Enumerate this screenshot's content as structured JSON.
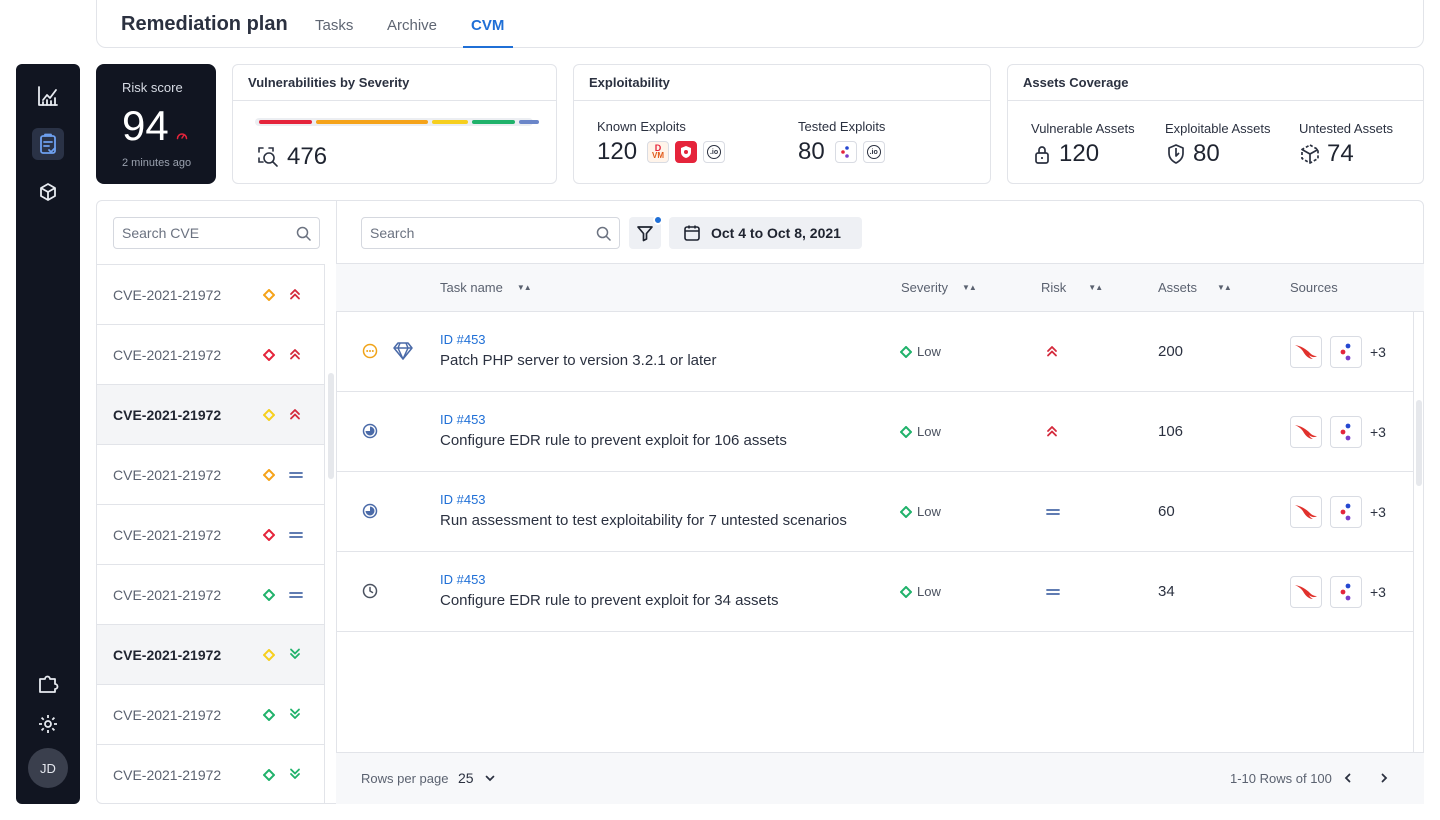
{
  "header": {
    "title": "Remediation plan",
    "tabs": [
      {
        "label": "Tasks",
        "active": false
      },
      {
        "label": "Archive",
        "active": false
      },
      {
        "label": "CVM",
        "active": true
      }
    ]
  },
  "sidebar": {
    "items": [
      {
        "icon": "chart-line-icon",
        "active": false
      },
      {
        "icon": "clipboard-check-icon",
        "active": true
      },
      {
        "icon": "cube-icon",
        "active": false
      },
      {
        "icon": "plugin-icon",
        "active": false
      },
      {
        "icon": "gear-icon",
        "active": false
      }
    ],
    "avatar_initials": "JD"
  },
  "risk_score": {
    "label": "Risk score",
    "value": "94",
    "updated": "2 minutes ago"
  },
  "severity_card": {
    "title": "Vulnerabilities by Severity",
    "count": "476",
    "segments": [
      {
        "color": "#e5243b",
        "fraction": 0.21
      },
      {
        "color": "#f5a31a",
        "fraction": 0.44
      },
      {
        "color": "#f6cf1e",
        "fraction": 0.14
      },
      {
        "color": "#20b26b",
        "fraction": 0.17
      },
      {
        "color": "#6b86c9",
        "fraction": 0.08
      }
    ]
  },
  "exploitability_card": {
    "title": "Exploitability",
    "known": {
      "label": "Known Exploits",
      "value": "120",
      "sources": [
        "VM",
        "shield",
        "io"
      ]
    },
    "tested": {
      "label": "Tested Exploits",
      "value": "80",
      "sources": [
        "dots",
        "io"
      ]
    }
  },
  "assets_card": {
    "title": "Assets Coverage",
    "vulnerable": {
      "label": "Vulnerable Assets",
      "value": "120"
    },
    "exploitable": {
      "label": "Exploitable Assets",
      "value": "80"
    },
    "untested": {
      "label": "Untested Assets",
      "value": "74"
    }
  },
  "cve_panel": {
    "search_placeholder": "Search CVE",
    "items": [
      {
        "id": "CVE-2021-21972",
        "severity": "orange",
        "risk": "high",
        "selected": false
      },
      {
        "id": "CVE-2021-21972",
        "severity": "red",
        "risk": "high",
        "selected": false
      },
      {
        "id": "CVE-2021-21972",
        "severity": "yellow",
        "risk": "high",
        "selected": true
      },
      {
        "id": "CVE-2021-21972",
        "severity": "orange",
        "risk": "medium",
        "selected": false
      },
      {
        "id": "CVE-2021-21972",
        "severity": "red",
        "risk": "medium",
        "selected": false
      },
      {
        "id": "CVE-2021-21972",
        "severity": "green",
        "risk": "medium",
        "selected": false
      },
      {
        "id": "CVE-2021-21972",
        "severity": "yellow",
        "risk": "low",
        "selected": true
      },
      {
        "id": "CVE-2021-21972",
        "severity": "green",
        "risk": "low",
        "selected": false
      },
      {
        "id": "CVE-2021-21972",
        "severity": "green",
        "risk": "low",
        "selected": false
      }
    ]
  },
  "toolbar": {
    "search_placeholder": "Search",
    "date_range": "Oct 4 to Oct 8, 2021"
  },
  "table": {
    "columns": [
      "Task name",
      "Severity",
      "Risk",
      "Assets",
      "Sources"
    ],
    "rows": [
      {
        "status": "pending",
        "gem": true,
        "id": "ID #453",
        "name": "Patch PHP server to version 3.2.1 or later",
        "severity": "Low",
        "risk": "high",
        "assets": "200",
        "sources_more": "+3"
      },
      {
        "status": "in-progress",
        "gem": false,
        "id": "ID #453",
        "name": "Configure EDR rule to prevent exploit for 106 assets",
        "severity": "Low",
        "risk": "high",
        "assets": "106",
        "sources_more": "+3"
      },
      {
        "status": "in-progress",
        "gem": false,
        "id": "ID #453",
        "name": "Run assessment to test exploitability for 7 untested scenarios",
        "severity": "Low",
        "risk": "medium",
        "assets": "60",
        "sources_more": "+3"
      },
      {
        "status": "scheduled",
        "gem": false,
        "id": "ID #453",
        "name": "Configure EDR rule to prevent exploit for 34 assets",
        "severity": "Low",
        "risk": "medium",
        "assets": "34",
        "sources_more": "+3"
      }
    ]
  },
  "footer": {
    "rows_per_page_label": "Rows per page",
    "rows_per_page": "25",
    "range": "1-10 Rows of 100"
  },
  "colors": {
    "accent": "#1f6fd6",
    "sidebar_bg": "#111521",
    "sev_red": "#e5243b",
    "sev_orange": "#f5a31a",
    "sev_yellow": "#f6cf1e",
    "sev_green": "#20b26b",
    "risk_high": "#d42a3c",
    "risk_medium": "#4a6aa8",
    "risk_low": "#20b26b"
  }
}
